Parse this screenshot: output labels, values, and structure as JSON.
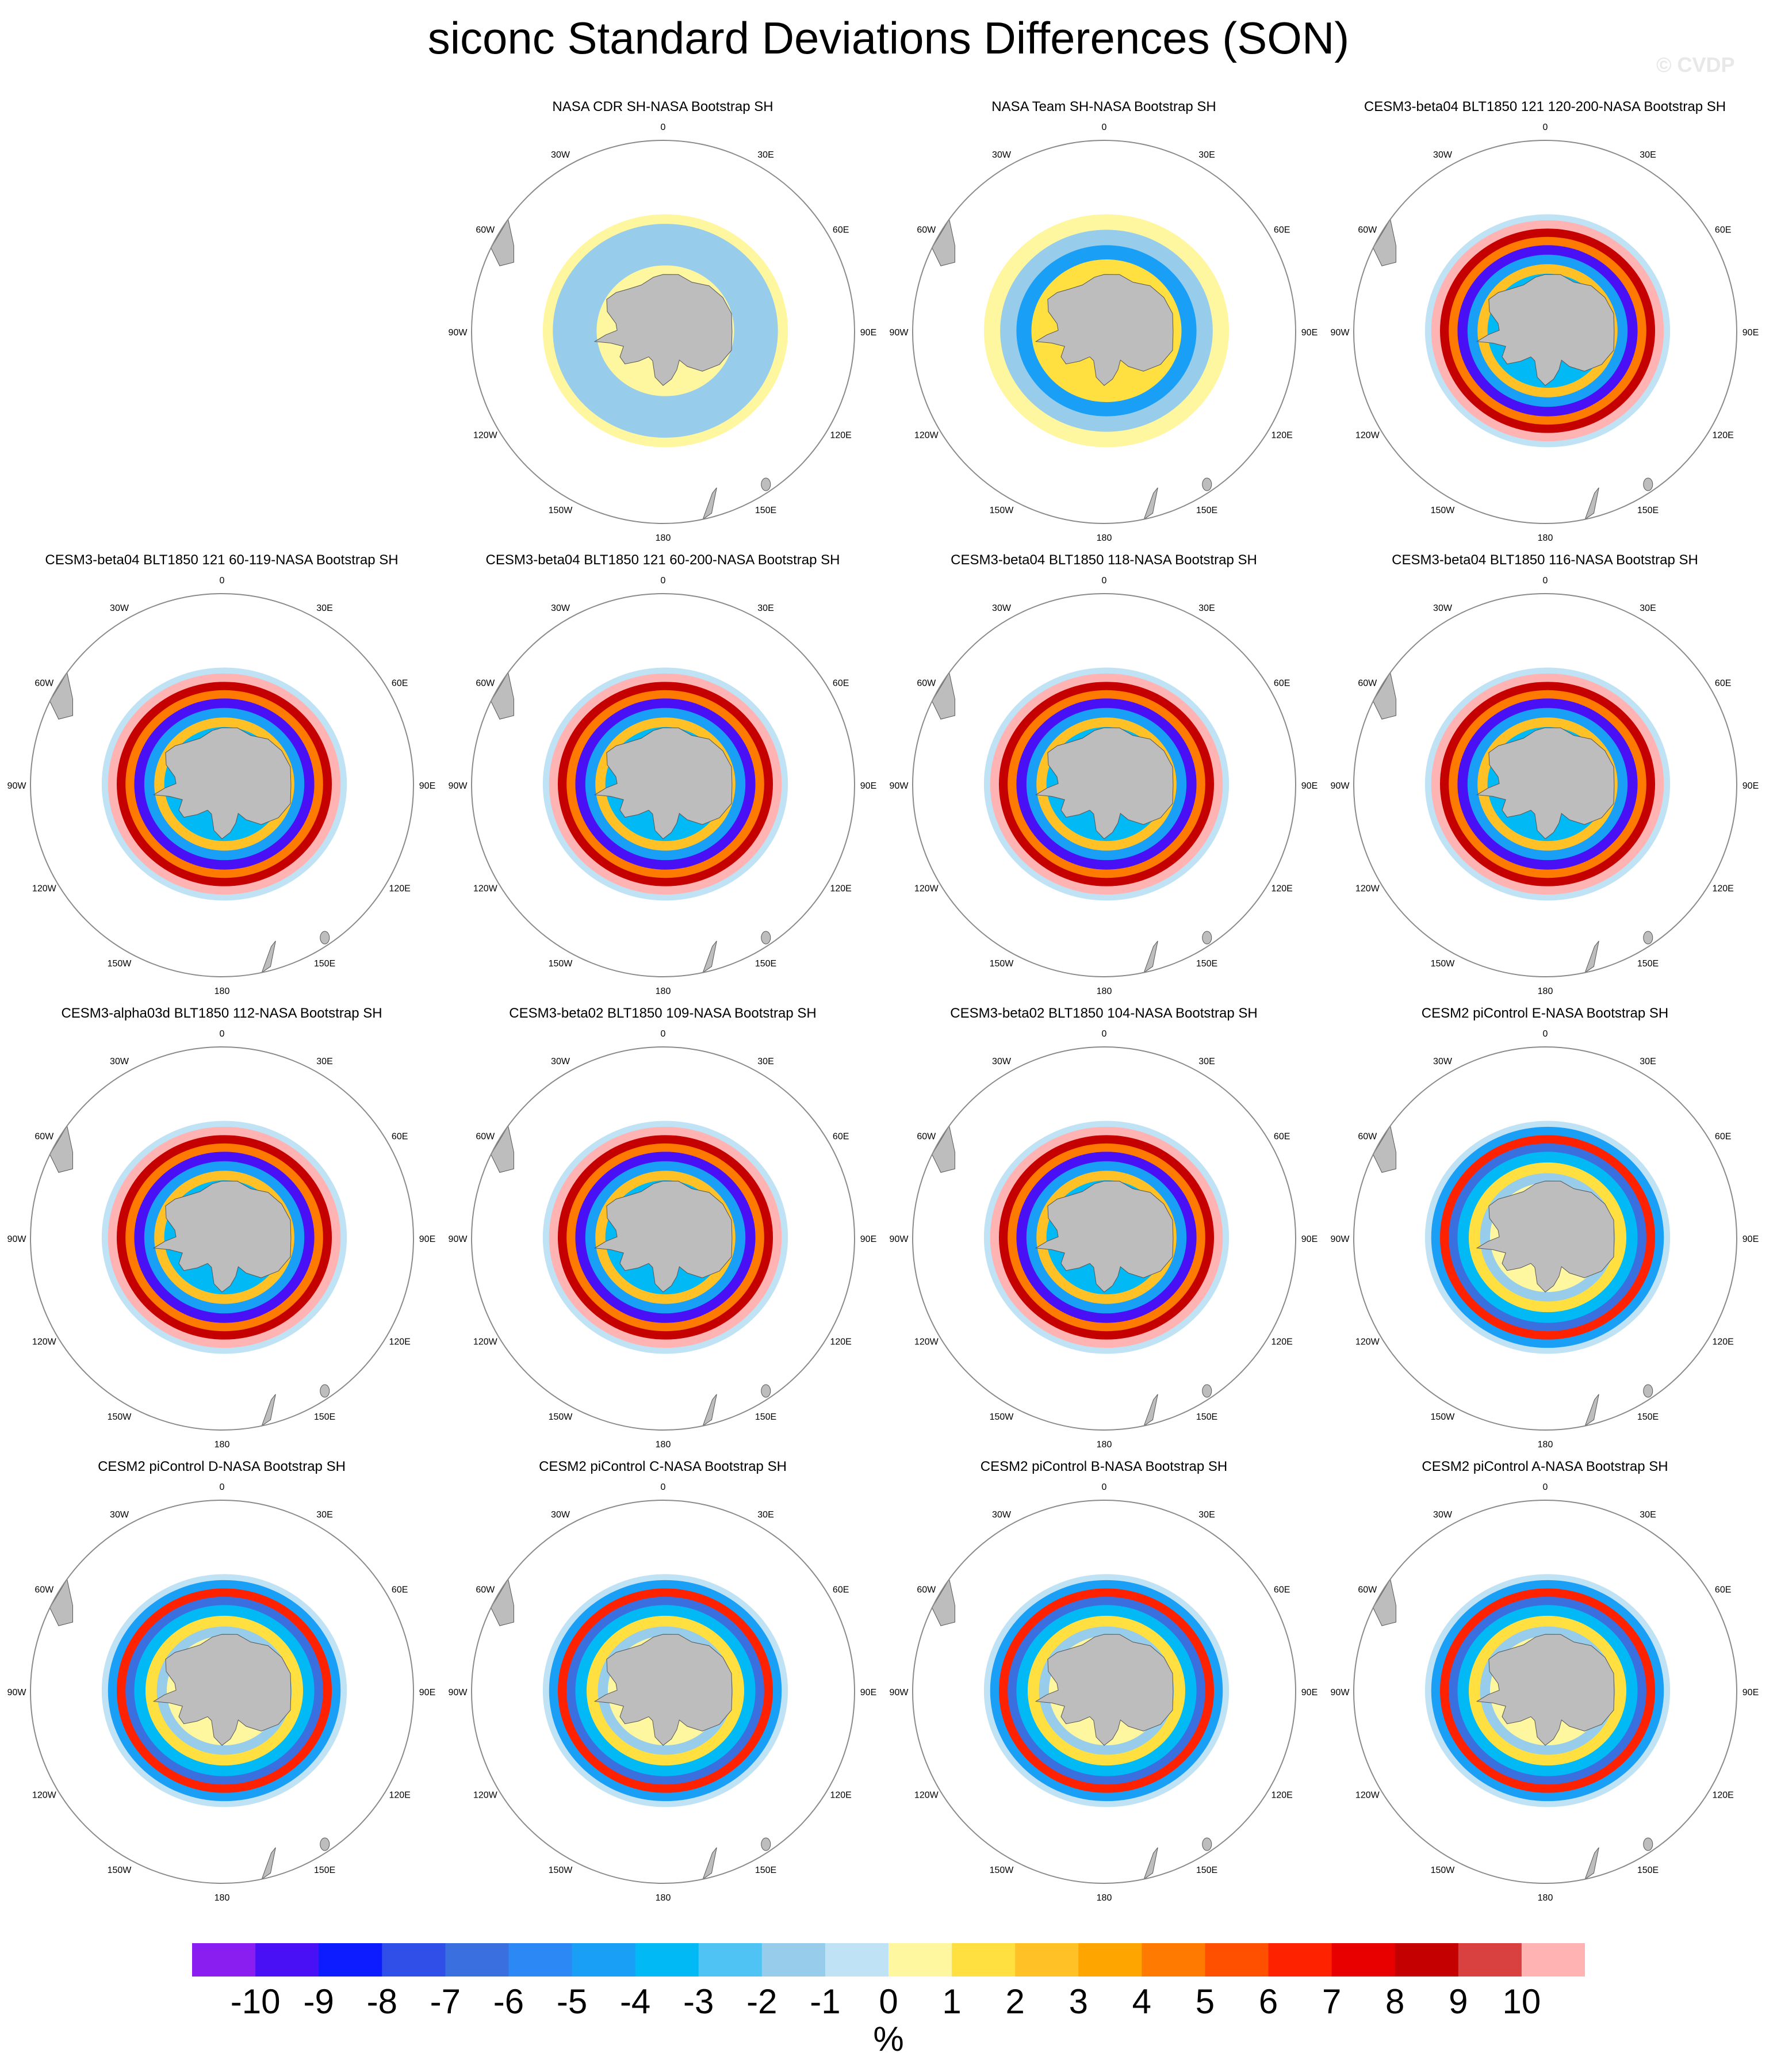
{
  "title": "siconc Standard Deviations Differences (SON)",
  "watermark": "© CVDP",
  "units": "%",
  "colorbar": {
    "labels": [
      "-10",
      "-9",
      "-8",
      "-7",
      "-6",
      "-5",
      "-4",
      "-3",
      "-2",
      "-1",
      "0",
      "1",
      "2",
      "3",
      "4",
      "5",
      "6",
      "7",
      "8",
      "9",
      "10"
    ],
    "colors": [
      "#8a1ef0",
      "#4a10f5",
      "#0d1bff",
      "#2f4fe8",
      "#3a6fe0",
      "#2b88f5",
      "#199ff5",
      "#00b9f5",
      "#4fc3f3",
      "#97cdea",
      "#bfe2f5",
      "#fff6a0",
      "#ffe040",
      "#ffc125",
      "#ffa500",
      "#ff7a00",
      "#ff5000",
      "#ff2200",
      "#e80000",
      "#c40000",
      "#d94040",
      "#ffb3b3"
    ]
  },
  "map": {
    "projection": "south-polar-stereographic",
    "longitude_labels": [
      "0",
      "30E",
      "60E",
      "90E",
      "120E",
      "150E",
      "180",
      "150W",
      "120W",
      "90W",
      "60W",
      "30W"
    ]
  },
  "panels": [
    {
      "title": "NASA CDR SH-NASA Bootstrap SH",
      "pattern": "obs-cdr"
    },
    {
      "title": "NASA Team SH-NASA Bootstrap SH",
      "pattern": "obs-team"
    },
    {
      "title": "CESM3-beta04 BLT1850 121 120-200-NASA Bootstrap SH",
      "pattern": "model-strong"
    },
    {
      "title": "CESM3-beta04 BLT1850 121 60-119-NASA Bootstrap SH",
      "pattern": "model-strong"
    },
    {
      "title": "CESM3-beta04 BLT1850 121 60-200-NASA Bootstrap SH",
      "pattern": "model-strong"
    },
    {
      "title": "CESM3-beta04 BLT1850 118-NASA Bootstrap SH",
      "pattern": "model-strong"
    },
    {
      "title": "CESM3-beta04 BLT1850 116-NASA Bootstrap SH",
      "pattern": "model-strong"
    },
    {
      "title": "CESM3-alpha03d BLT1850 112-NASA Bootstrap SH",
      "pattern": "model-strong"
    },
    {
      "title": "CESM3-beta02 BLT1850 109-NASA Bootstrap SH",
      "pattern": "model-strong"
    },
    {
      "title": "CESM3-beta02 BLT1850 104-NASA Bootstrap SH",
      "pattern": "model-strong"
    },
    {
      "title": "CESM2 piControl E-NASA Bootstrap SH",
      "pattern": "model-mild"
    },
    {
      "title": "CESM2 piControl D-NASA Bootstrap SH",
      "pattern": "model-mild"
    },
    {
      "title": "CESM2 piControl C-NASA Bootstrap SH",
      "pattern": "model-mild"
    },
    {
      "title": "CESM2 piControl B-NASA Bootstrap SH",
      "pattern": "model-mild"
    },
    {
      "title": "CESM2 piControl A-NASA Bootstrap SH",
      "pattern": "model-mild"
    }
  ]
}
